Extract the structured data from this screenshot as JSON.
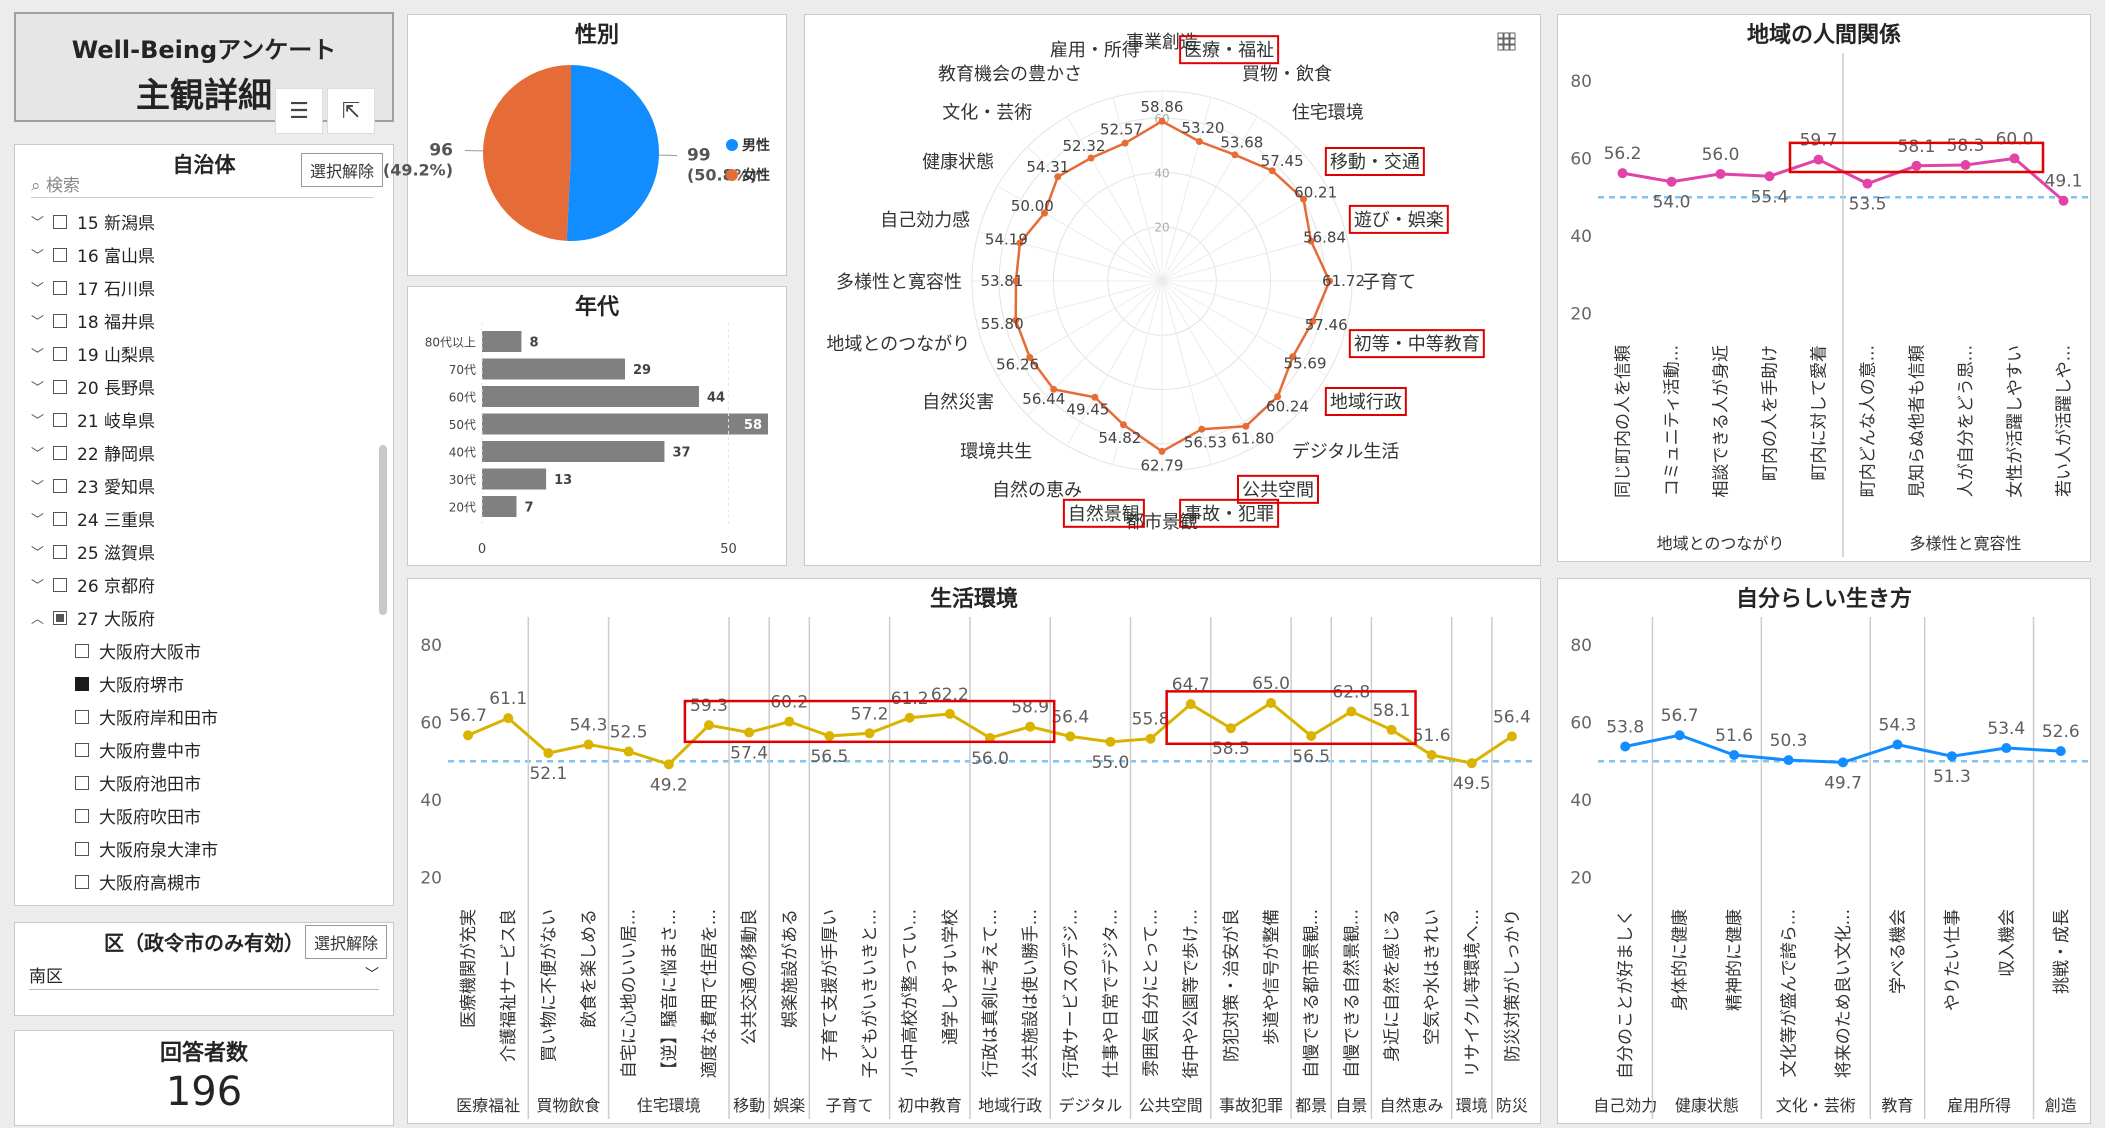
{
  "header": {
    "line1": "Well-Beingアンケート",
    "line2": "主観詳細",
    "filter_icon": "filter-icon",
    "focus_icon": "focus-mode-icon"
  },
  "municipality": {
    "title": "自治体",
    "clear_label": "選択解除",
    "search_placeholder": "検索",
    "items": [
      {
        "label": "15 新潟県",
        "state": "collapsed",
        "checked": "none"
      },
      {
        "label": "16 富山県",
        "state": "collapsed",
        "checked": "none"
      },
      {
        "label": "17 石川県",
        "state": "collapsed",
        "checked": "none"
      },
      {
        "label": "18 福井県",
        "state": "collapsed",
        "checked": "none"
      },
      {
        "label": "19 山梨県",
        "state": "collapsed",
        "checked": "none"
      },
      {
        "label": "20 長野県",
        "state": "collapsed",
        "checked": "none"
      },
      {
        "label": "21 岐阜県",
        "state": "collapsed",
        "checked": "none"
      },
      {
        "label": "22 静岡県",
        "state": "collapsed",
        "checked": "none"
      },
      {
        "label": "23 愛知県",
        "state": "collapsed",
        "checked": "none"
      },
      {
        "label": "24 三重県",
        "state": "collapsed",
        "checked": "none"
      },
      {
        "label": "25 滋賀県",
        "state": "collapsed",
        "checked": "none"
      },
      {
        "label": "26 京都府",
        "state": "collapsed",
        "checked": "none"
      },
      {
        "label": "27 大阪府",
        "state": "expanded",
        "checked": "partial"
      },
      {
        "label": "大阪府大阪市",
        "state": "child",
        "checked": "none"
      },
      {
        "label": "大阪府堺市",
        "state": "child",
        "checked": "checked"
      },
      {
        "label": "大阪府岸和田市",
        "state": "child",
        "checked": "none"
      },
      {
        "label": "大阪府豊中市",
        "state": "child",
        "checked": "none"
      },
      {
        "label": "大阪府池田市",
        "state": "child",
        "checked": "none"
      },
      {
        "label": "大阪府吹田市",
        "state": "child",
        "checked": "none"
      },
      {
        "label": "大阪府泉大津市",
        "state": "child",
        "checked": "none"
      },
      {
        "label": "大阪府高槻市",
        "state": "child",
        "checked": "none"
      }
    ]
  },
  "ward": {
    "title": "区（政令市のみ有効）",
    "clear_label": "選択解除",
    "selected": "南区"
  },
  "respondents": {
    "label": "回答者数",
    "value": "196"
  },
  "chart_data": [
    {
      "id": "gender",
      "type": "pie",
      "title": "性別",
      "slices": [
        {
          "name": "男性",
          "value": 99,
          "pct": "(50.8%)",
          "color": "#118DFF"
        },
        {
          "name": "女性",
          "value": 96,
          "pct": "(49.2%)",
          "color": "#E66C37"
        }
      ]
    },
    {
      "id": "age",
      "type": "bar",
      "title": "年代",
      "categories": [
        "80代以上",
        "70代",
        "60代",
        "50代",
        "40代",
        "30代",
        "20代"
      ],
      "values": [
        8,
        29,
        44,
        58,
        37,
        13,
        7
      ],
      "xticks": [
        "0",
        "50"
      ],
      "xlim": [
        0,
        58
      ],
      "color": "#808080"
    },
    {
      "id": "radar",
      "type": "radar",
      "axes": [
        "事業創造",
        "医療・福祉",
        "買物・飲食",
        "住宅環境",
        "移動・交通",
        "遊び・娯楽",
        "子育て",
        "初等・中等教育",
        "地域行政",
        "デジタル生活",
        "公共空間",
        "事故・犯罪",
        "都市景観",
        "自然景観",
        "自然の恵み",
        "環境共生",
        "自然災害",
        "地域とのつながり",
        "多様性と寛容性",
        "自己効力感",
        "健康状態",
        "文化・芸術",
        "教育機会の豊かさ",
        "雇用・所得"
      ],
      "highlighted": [
        "医療・福祉",
        "移動・交通",
        "遊び・娯楽",
        "初等・中等教育",
        "地域行政",
        "公共空間",
        "事故・犯罪",
        "自然景観"
      ],
      "values": [
        58.86,
        53.2,
        53.68,
        57.45,
        60.21,
        56.84,
        61.72,
        57.46,
        55.69,
        60.24,
        61.8,
        56.53,
        62.79,
        54.82,
        49.45,
        56.44,
        56.26,
        55.8,
        53.81,
        54.19,
        50.0,
        54.31,
        52.32,
        52.57
      ],
      "value_labels": [
        "58.86",
        "53.20",
        "53.68",
        "57.45",
        "60.21",
        "56.84",
        "61.72",
        "57.46",
        "55.69",
        "60.24",
        "61.80",
        "56.53",
        "62.79",
        "54.82",
        "49.45",
        "56.44",
        "56.26",
        "55.80",
        "53.81",
        "54.19",
        "50.00",
        "54.31",
        "52.32",
        "52.57"
      ],
      "rings": [
        "20",
        "40",
        "60"
      ],
      "rlim": [
        0,
        70
      ],
      "color": "#E66C37",
      "grid_icon": "grid-icon"
    },
    {
      "id": "community",
      "type": "line",
      "title": "地域の人間関係",
      "categories": [
        "同じ町内の人を信頼",
        "コミュニティ活動...",
        "相談できる人が身近",
        "町内の人を手助け",
        "町内に対して愛着",
        "町内どんな人の意...",
        "見知らぬ他者も信頼",
        "人が自分をどう思...",
        "女性が活躍しやすい",
        "若い人が活躍しや..."
      ],
      "values": [
        56.2,
        54.0,
        56.0,
        55.4,
        59.7,
        53.5,
        58.1,
        58.3,
        60.0,
        49.1
      ],
      "value_labels": [
        "56.2",
        "54.0",
        "56.0",
        "55.4",
        "59.7",
        "53.5",
        "58.1",
        "58.3",
        "60.0",
        "49.1"
      ],
      "groups": [
        {
          "label": "地域とのつながり",
          "count": 5
        },
        {
          "label": "多様性と寛容性",
          "count": 5
        }
      ],
      "yticks": [
        "20",
        "40",
        "60",
        "80"
      ],
      "ylim": [
        14,
        82
      ],
      "reference": 50,
      "color": "#E044A7"
    },
    {
      "id": "living",
      "type": "line",
      "title": "生活環境",
      "categories": [
        "医療機関が充実",
        "介護福祉サービス良",
        "買い物に不便がない",
        "飲食を楽しめる",
        "自宅に心地のいい居...",
        "【逆】騒音に悩まさ...",
        "適度な費用で住居を...",
        "公共交通の移動良",
        "娯楽施設がある",
        "子育て支援が手厚い",
        "子どもがいきいきと...",
        "小中高校が整ってい...",
        "通学しやすい学校",
        "行政は真剣に考えて...",
        "公共施設は使い勝手...",
        "行政サービスのデジ...",
        "仕事や日常でデジタ...",
        "雰囲気自分にとって...",
        "街中や公園等で歩け...",
        "防犯対策・治安が良",
        "歩道や信号が整備",
        "自慢できる都市景観...",
        "自慢できる自然景観...",
        "身近に自然を感じる",
        "空気や水はきれい",
        "リサイクル等環境へ...",
        "防災対策がしっかり"
      ],
      "values": [
        56.7,
        61.1,
        52.1,
        54.3,
        52.5,
        49.2,
        59.3,
        57.4,
        60.2,
        56.5,
        57.2,
        61.2,
        62.2,
        56.0,
        58.9,
        56.4,
        55.0,
        55.8,
        64.7,
        58.5,
        65.0,
        56.5,
        62.8,
        58.1,
        51.6,
        49.5,
        56.4
      ],
      "value_labels": [
        "56.7",
        "61.1",
        "52.1",
        "54.3",
        "52.5",
        "49.2",
        "59.3",
        "57.4",
        "60.2",
        "56.5",
        "57.2",
        "61.2",
        "62.2",
        "56.0",
        "58.9",
        "56.4",
        "55.0",
        "55.8",
        "64.7",
        "58.5",
        "65.0",
        "56.5",
        "62.8",
        "58.1",
        "51.6",
        "49.5",
        "56.4"
      ],
      "groups": [
        {
          "label": "医療福祉",
          "count": 2
        },
        {
          "label": "買物飲食",
          "count": 2
        },
        {
          "label": "住宅環境",
          "count": 3
        },
        {
          "label": "移動",
          "count": 1
        },
        {
          "label": "娯楽",
          "count": 1
        },
        {
          "label": "子育て",
          "count": 2
        },
        {
          "label": "初中教育",
          "count": 2
        },
        {
          "label": "地域行政",
          "count": 2
        },
        {
          "label": "デジタル",
          "count": 2
        },
        {
          "label": "公共空間",
          "count": 2
        },
        {
          "label": "事故犯罪",
          "count": 2
        },
        {
          "label": "都景",
          "count": 1
        },
        {
          "label": "自景",
          "count": 1
        },
        {
          "label": "自然恵み",
          "count": 2
        },
        {
          "label": "環境",
          "count": 1
        },
        {
          "label": "防災",
          "count": 1
        }
      ],
      "yticks": [
        "20",
        "40",
        "60",
        "80"
      ],
      "ylim": [
        14,
        82
      ],
      "reference": 50,
      "color": "#D9B300"
    },
    {
      "id": "self",
      "type": "line",
      "title": "自分らしい生き方",
      "categories": [
        "自分のことが好ましく",
        "身体的に健康",
        "精神的に健康",
        "文化等が盛んで誇ら...",
        "将来のため良い文化...",
        "学べる機会",
        "やりたい仕事",
        "収入機会",
        "挑戦・成長"
      ],
      "values": [
        53.8,
        56.7,
        51.6,
        50.3,
        49.7,
        54.3,
        51.3,
        53.4,
        52.6
      ],
      "value_labels": [
        "53.8",
        "56.7",
        "51.6",
        "50.3",
        "49.7",
        "54.3",
        "51.3",
        "53.4",
        "52.6"
      ],
      "groups": [
        {
          "label": "自己効力",
          "count": 1
        },
        {
          "label": "健康状態",
          "count": 2
        },
        {
          "label": "文化・芸術",
          "count": 2
        },
        {
          "label": "教育",
          "count": 1
        },
        {
          "label": "雇用所得",
          "count": 2
        },
        {
          "label": "創造",
          "count": 1
        }
      ],
      "yticks": [
        "20",
        "40",
        "60",
        "80"
      ],
      "ylim": [
        14,
        82
      ],
      "reference": 50,
      "color": "#118DFF"
    }
  ]
}
